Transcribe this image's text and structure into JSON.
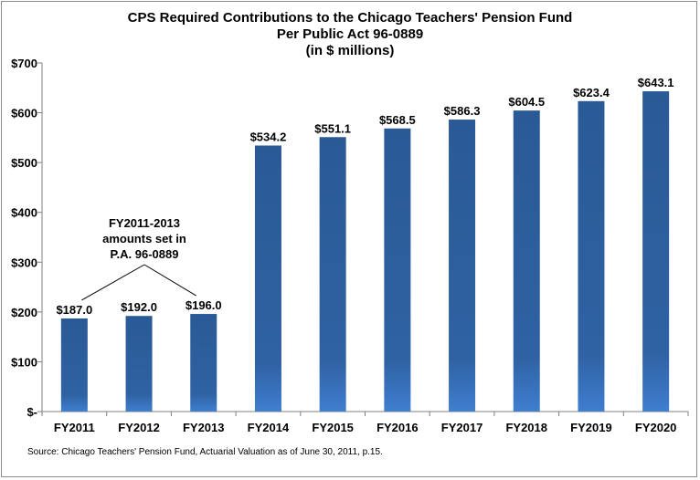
{
  "chart_data": {
    "type": "bar",
    "title": [
      "CPS Required Contributions to the Chicago Teachers' Pension Fund",
      "Per Public Act 96-0889",
      "(in $ millions)"
    ],
    "categories": [
      "FY2011",
      "FY2012",
      "FY2013",
      "FY2014",
      "FY2015",
      "FY2016",
      "FY2017",
      "FY2018",
      "FY2019",
      "FY2020"
    ],
    "values": [
      187.0,
      192.0,
      196.0,
      534.2,
      551.1,
      568.5,
      586.3,
      604.5,
      623.4,
      643.1
    ],
    "data_labels": [
      "$187.0",
      "$192.0",
      "$196.0",
      "$534.2",
      "$551.1",
      "$568.5",
      "$586.3",
      "$604.5",
      "$623.4",
      "$643.1"
    ],
    "ylim": [
      0,
      700
    ],
    "yticks": [
      0,
      100,
      200,
      300,
      400,
      500,
      600,
      700
    ],
    "ytick_labels": [
      "$-",
      "$100",
      "$200",
      "$300",
      "$400",
      "$500",
      "$600",
      "$700"
    ],
    "xlabel": "",
    "ylabel": "",
    "grid": false,
    "bar_color_top": "#2a5a96",
    "bar_color_bottom": "#3f7ed0",
    "annotation": {
      "lines": [
        "FY2011-2013",
        "amounts set in",
        "P.A. 96-0889"
      ],
      "targets": [
        "FY2011",
        "FY2013"
      ]
    },
    "source": "Source: Chicago Teachers' Pension Fund, Actuarial Valuation as of June 30, 2011, p.15."
  }
}
